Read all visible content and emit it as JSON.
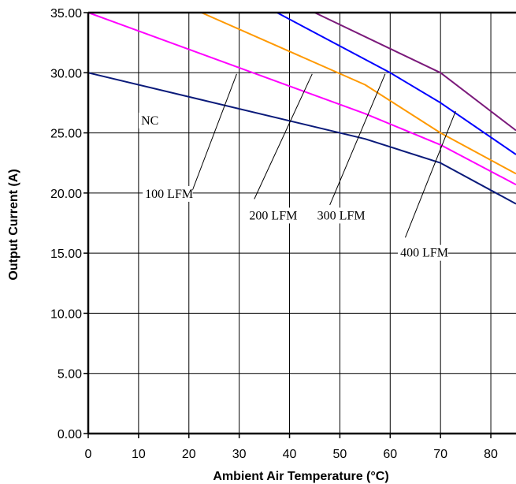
{
  "chart_data": {
    "type": "line",
    "title": "",
    "xlabel": "Ambient Air Temperature (°C)",
    "ylabel": "Output Current (A)",
    "xlim": [
      0,
      85
    ],
    "ylim": [
      0,
      35
    ],
    "xticks": [
      0,
      10,
      20,
      30,
      40,
      50,
      60,
      70,
      80
    ],
    "xtick_labels": [
      "0",
      "10",
      "20",
      "30",
      "40",
      "50",
      "60",
      "70",
      "80"
    ],
    "yticks": [
      0,
      5,
      10,
      15,
      20,
      25,
      30,
      35
    ],
    "ytick_labels": [
      "0.00",
      "5.00",
      "10.00",
      "15.00",
      "20.00",
      "25.00",
      "30.00",
      "35.00"
    ],
    "grid": true,
    "series": [
      {
        "name": "NC",
        "color": "#0a1a7a",
        "x": [
          0,
          55,
          70,
          85
        ],
        "y": [
          30.0,
          24.5,
          22.5,
          19.1
        ]
      },
      {
        "name": "100 LFM",
        "color": "#ff00ff",
        "x": [
          0,
          55,
          70,
          85
        ],
        "y": [
          35.0,
          26.6,
          24.0,
          20.7
        ]
      },
      {
        "name": "200 LFM",
        "color": "#ff9900",
        "x": [
          22.5,
          55,
          70,
          85
        ],
        "y": [
          35.0,
          29.0,
          25.0,
          21.6
        ]
      },
      {
        "name": "300 LFM",
        "color": "#0000ff",
        "x": [
          37.5,
          60,
          70,
          85
        ],
        "y": [
          35.0,
          30.0,
          27.5,
          23.2
        ]
      },
      {
        "name": "400 LFM",
        "color": "#7b1a7b",
        "x": [
          45,
          60,
          70,
          85
        ],
        "y": [
          35.0,
          32.0,
          30.0,
          25.2
        ]
      }
    ],
    "annotations": [
      {
        "text": "NC",
        "label_at": [
          10.5,
          25.7
        ],
        "pointer": null
      },
      {
        "text": "100 LFM",
        "label_at": [
          11.3,
          19.6
        ],
        "pointer": [
          [
            20.5,
            20.0
          ],
          [
            29.5,
            29.9
          ]
        ]
      },
      {
        "text": "200 LFM",
        "label_at": [
          32.0,
          17.8
        ],
        "pointer": [
          [
            33.0,
            19.5
          ],
          [
            44.5,
            29.9
          ]
        ]
      },
      {
        "text": "300 LFM",
        "label_at": [
          45.5,
          17.8
        ],
        "pointer": [
          [
            48.0,
            19.0
          ],
          [
            59.0,
            29.9
          ]
        ]
      },
      {
        "text": "400 LFM",
        "label_at": [
          62.0,
          14.7
        ],
        "pointer": [
          [
            63.0,
            16.3
          ],
          [
            73.0,
            26.8
          ]
        ]
      }
    ]
  }
}
